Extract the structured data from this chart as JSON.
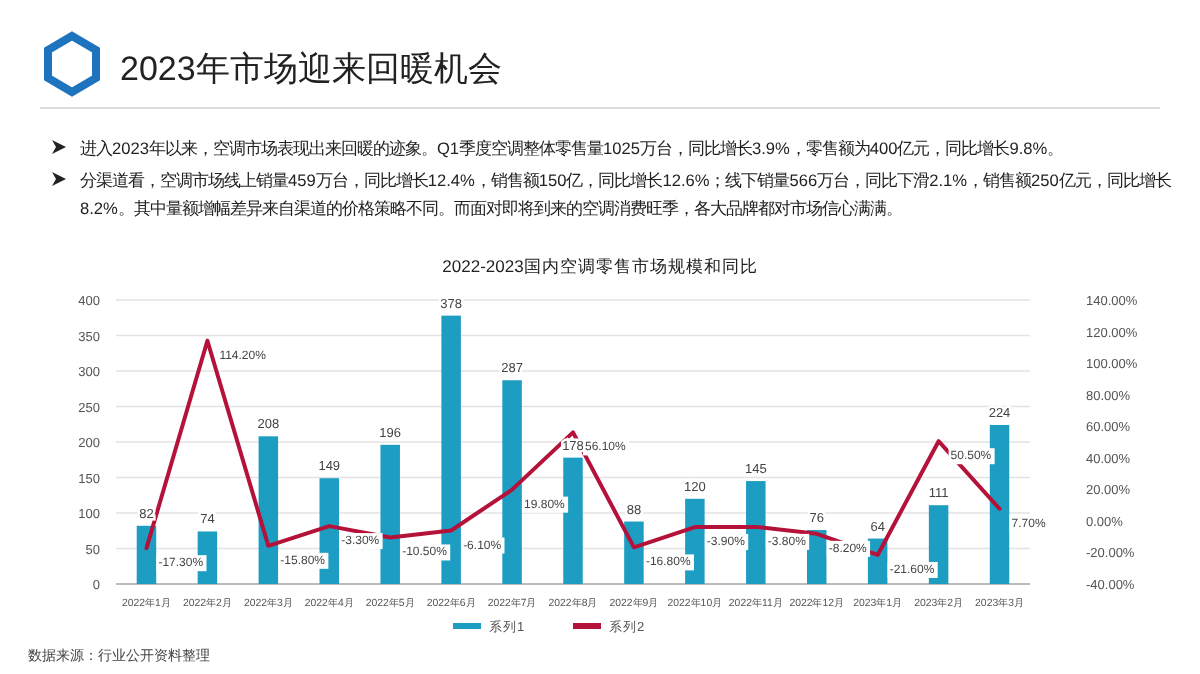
{
  "chart_data": {
    "type": "bar",
    "title": "2023年市场迎来回暖机会",
    "subtitle": "2022-2023国内空调零售市场规模和同比",
    "annotations": [
      "进入2023年以来，空调市场表现出来回暖的迹象。Q1季度空调整体零售量1025万台，同比增长3.9%，零售额为400亿元，同比增长9.8%。",
      "分渠道看，空调市场线上销量459万台，同比增长12.4%，销售额150亿，同比增长12.6%；线下销量566万台，同比下滑2.1%，销售额250亿元，同比增长8.2%。其中量额增幅差异来自渠道的价格策略不同。而面对即将到来的空调消费旺季，各大品牌都对市场信心满满。",
      "数据来源：行业公开资料整理"
    ],
    "categories": [
      "2022年1月",
      "2022年2月",
      "2022年3月",
      "2022年4月",
      "2022年5月",
      "2022年6月",
      "2022年7月",
      "2022年8月",
      "2022年9月",
      "2022年10月",
      "2022年11月",
      "2022年12月",
      "2023年1月",
      "2023年2月",
      "2023年3月"
    ],
    "series": [
      {
        "name": "系列1",
        "type": "bar",
        "color": "#1e9dc2",
        "values": [
          82,
          74,
          208,
          149,
          196,
          378,
          287,
          178,
          88,
          120,
          145,
          76,
          64,
          111,
          224
        ]
      },
      {
        "name": "系列2",
        "type": "line",
        "axis": "y2",
        "color": "#b5123a",
        "values": [
          -17.3,
          114.2,
          -15.8,
          -3.3,
          -10.5,
          -6.1,
          19.8,
          56.1,
          -16.8,
          -3.9,
          -3.8,
          -8.2,
          -21.6,
          50.5,
          7.7
        ],
        "value_labels": [
          "-17.30%",
          "114.20%",
          "-15.80%",
          "-3.30%",
          "-10.50%",
          "-6.10%",
          "19.80%",
          "56.10%",
          "-16.80%",
          "-3.90%",
          "-3.80%",
          "-8.20%",
          "-21.60%",
          "50.50%",
          "7.70%"
        ]
      }
    ],
    "ylim": [
      0,
      400
    ],
    "yticks": [
      0,
      50,
      100,
      150,
      200,
      250,
      300,
      350,
      400
    ],
    "y2lim": [
      -40,
      140
    ],
    "y2ticks": [
      {
        "value": -40,
        "label": "-40.00%"
      },
      {
        "value": -20,
        "label": "-20.00%"
      },
      {
        "value": 0,
        "label": "0.00%"
      },
      {
        "value": 20,
        "label": "20.00%"
      },
      {
        "value": 40,
        "label": "40.00%"
      },
      {
        "value": 60,
        "label": "60.00%"
      },
      {
        "value": 80,
        "label": "80.00%"
      },
      {
        "value": 100,
        "label": "100.00%"
      },
      {
        "value": 120,
        "label": "120.00%"
      },
      {
        "value": 140,
        "label": "140.00%"
      }
    ],
    "grid": "y",
    "legend": "bottom",
    "data_labels": true,
    "marker": "none"
  }
}
